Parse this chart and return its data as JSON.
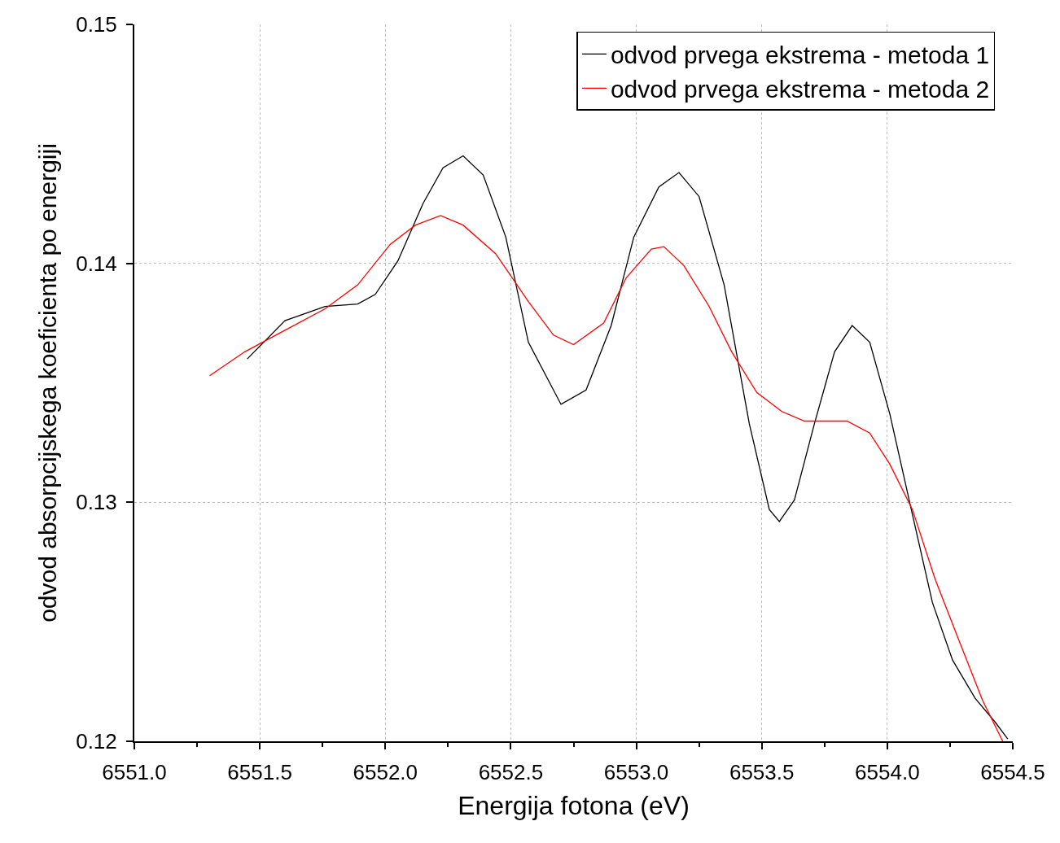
{
  "chart_data": {
    "type": "line",
    "xlabel": "Energija fotona (eV)",
    "ylabel": "odvod absorpcijskega koeficienta po energiji",
    "xlim": [
      6551.0,
      6554.5
    ],
    "ylim": [
      0.12,
      0.15
    ],
    "xticks": [
      {
        "value": 6551.0,
        "label": "6551.0"
      },
      {
        "value": 6551.5,
        "label": "6551.5"
      },
      {
        "value": 6552.0,
        "label": "6552.0"
      },
      {
        "value": 6552.5,
        "label": "6552.5"
      },
      {
        "value": 6553.0,
        "label": "6553.0"
      },
      {
        "value": 6553.5,
        "label": "6553.5"
      },
      {
        "value": 6554.0,
        "label": "6554.0"
      },
      {
        "value": 6554.5,
        "label": "6554.5"
      }
    ],
    "yticks": [
      0.12,
      0.13,
      0.14,
      0.15
    ],
    "grid": true,
    "legend": "top right",
    "marker": "none",
    "line_style": "solid",
    "series": [
      {
        "name": "odvod prvega ekstrema - metoda 1",
        "color": "#000000",
        "x": [
          6551.45,
          6551.6,
          6551.76,
          6551.89,
          6551.96,
          6552.05,
          6552.15,
          6552.23,
          6552.31,
          6552.39,
          6552.48,
          6552.57,
          6552.7,
          6552.8,
          6552.9,
          6552.99,
          6553.09,
          6553.17,
          6553.25,
          6553.35,
          6553.45,
          6553.53,
          6553.57,
          6553.63,
          6553.71,
          6553.79,
          6553.86,
          6553.93,
          6554.01,
          6554.1,
          6554.18,
          6554.26,
          6554.35,
          6554.43,
          6554.48
        ],
        "values": [
          0.136,
          0.1376,
          0.1382,
          0.1383,
          0.1387,
          0.1401,
          0.1425,
          0.144,
          0.1445,
          0.1437,
          0.1411,
          0.1367,
          0.1341,
          0.1347,
          0.1374,
          0.1411,
          0.1432,
          0.1438,
          0.1428,
          0.1391,
          0.1333,
          0.1297,
          0.1292,
          0.1301,
          0.1333,
          0.1363,
          0.1374,
          0.1367,
          0.1337,
          0.1295,
          0.1258,
          0.1234,
          0.1218,
          0.1208,
          0.1201
        ]
      },
      {
        "name": "odvod prvega ekstrema - metoda 2",
        "color": "#ff0000",
        "x": [
          6551.3,
          6551.44,
          6551.6,
          6551.76,
          6551.89,
          6552.02,
          6552.12,
          6552.22,
          6552.31,
          6552.44,
          6552.57,
          6552.67,
          6552.75,
          6552.87,
          6552.96,
          6553.06,
          6553.11,
          6553.19,
          6553.29,
          6553.38,
          6553.48,
          6553.58,
          6553.67,
          6553.84,
          6553.93,
          6554.01,
          6554.1,
          6554.19,
          6554.29,
          6554.38,
          6554.46
        ],
        "values": [
          0.1353,
          0.1363,
          0.1372,
          0.1381,
          0.1391,
          0.1408,
          0.1416,
          0.142,
          0.1416,
          0.1404,
          0.1384,
          0.137,
          0.1366,
          0.1375,
          0.1394,
          0.1406,
          0.1407,
          0.1399,
          0.1382,
          0.1363,
          0.1346,
          0.1338,
          0.1334,
          0.1334,
          0.1329,
          0.1316,
          0.1297,
          0.1268,
          0.1241,
          0.1217,
          0.12
        ]
      }
    ]
  }
}
